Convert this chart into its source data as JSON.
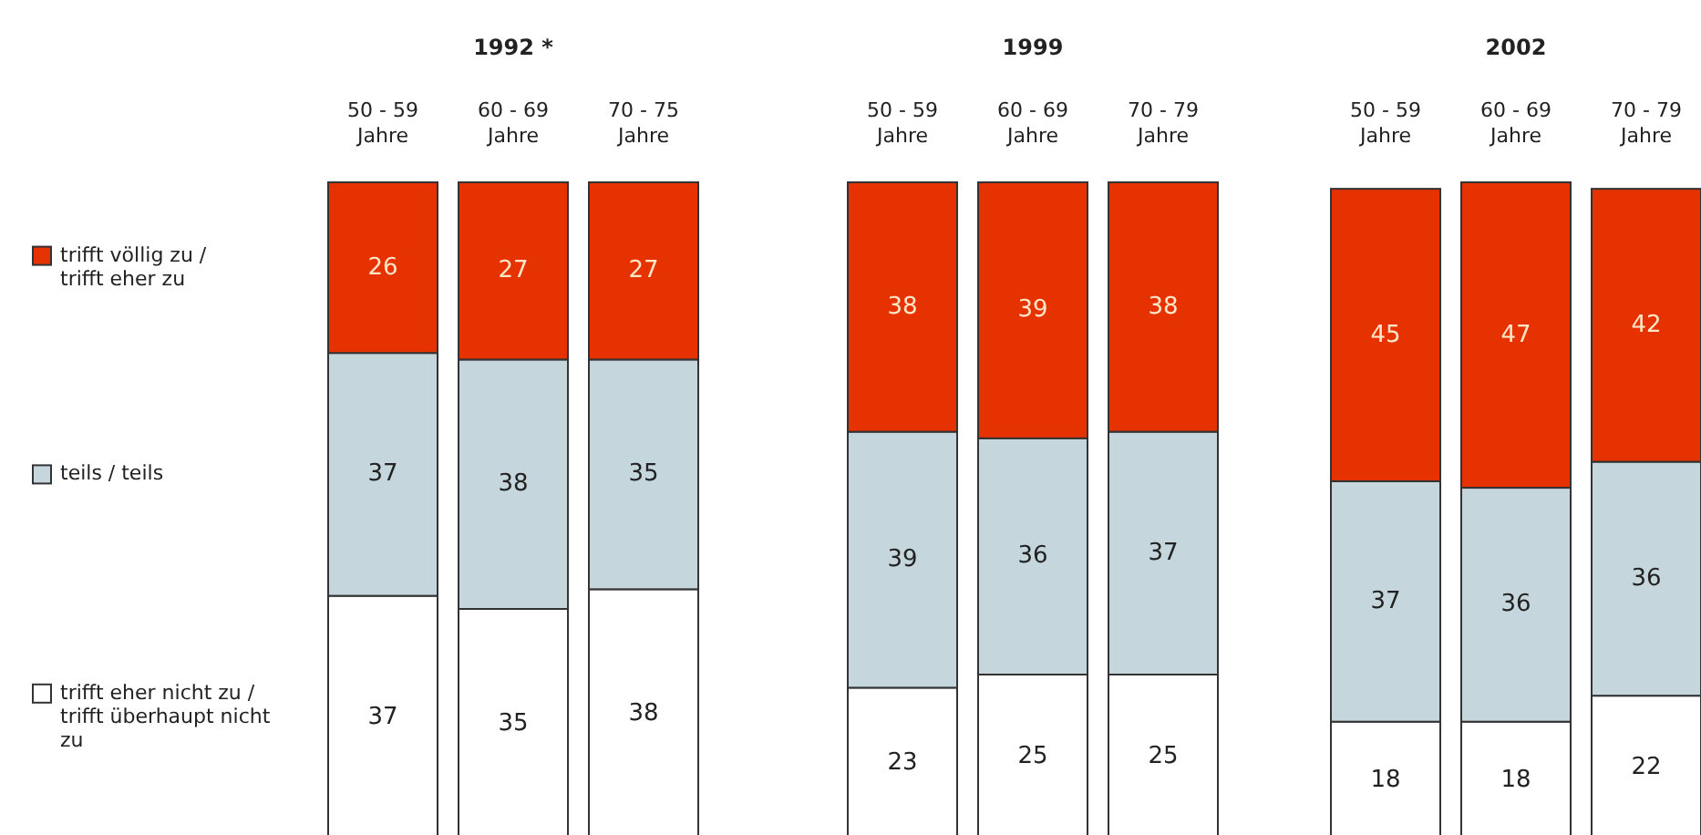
{
  "chart_data": [
    {
      "type": "bar",
      "title": "1992 *",
      "categories": [
        "50 - 59 Jahre",
        "60 - 69 Jahre",
        "70 - 75 Jahre"
      ],
      "stacked": true,
      "data_labels": true,
      "legend": "left",
      "series": [
        {
          "name": "trifft eher nicht zu / trifft überhaupt nicht zu",
          "color": "#ffffff",
          "values": [
            37,
            35,
            38
          ]
        },
        {
          "name": "teils / teils",
          "color": "#c5d7dd",
          "values": [
            37,
            38,
            35
          ]
        },
        {
          "name": "trifft völlig zu / trifft eher zu",
          "color": "#e63200",
          "values": [
            26,
            27,
            27
          ]
        }
      ]
    },
    {
      "type": "bar",
      "title": "1999",
      "categories": [
        "50 - 59 Jahre",
        "60 - 69 Jahre",
        "70 - 79 Jahre"
      ],
      "stacked": true,
      "data_labels": true,
      "series": [
        {
          "color": "#ffffff",
          "values": [
            23,
            25,
            25
          ]
        },
        {
          "color": "#c5d7dd",
          "values": [
            39,
            36,
            37
          ]
        },
        {
          "color": "#e63200",
          "values": [
            38,
            39,
            38
          ]
        }
      ]
    },
    {
      "type": "bar",
      "title": "2002",
      "categories": [
        "50 - 59 Jahre",
        "60 - 69 Jahre",
        "70 - 79 Jahre"
      ],
      "stacked": true,
      "data_labels": true,
      "series": [
        {
          "color": "#ffffff",
          "values": [
            18,
            18,
            22
          ]
        },
        {
          "color": "#c5d7dd",
          "values": [
            37,
            36,
            36
          ]
        },
        {
          "color": "#e63200",
          "values": [
            45,
            47,
            42
          ]
        }
      ]
    }
  ]
}
